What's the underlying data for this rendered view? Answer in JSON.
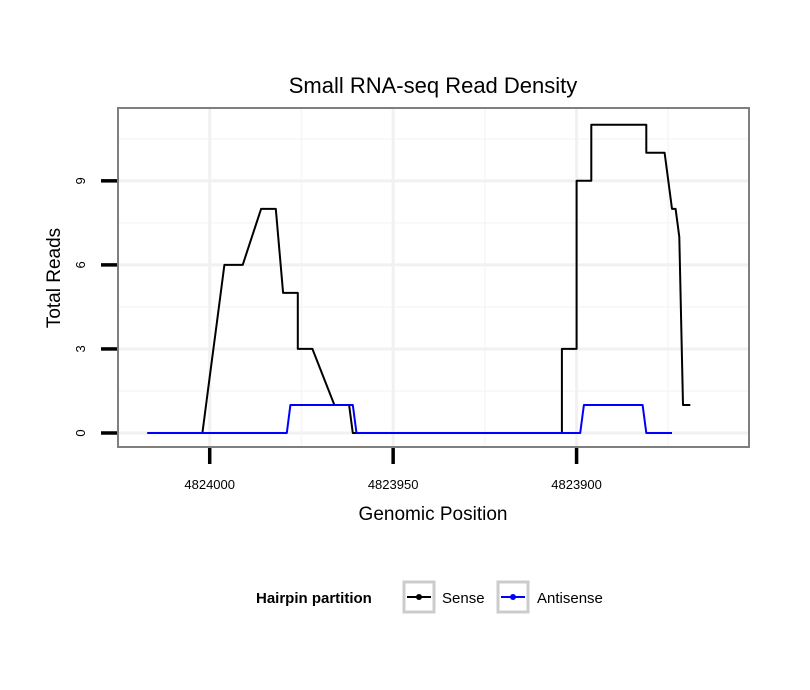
{
  "chart_data": {
    "type": "line",
    "title": "Small RNA-seq Read Density",
    "xlabel": "Genomic Position",
    "ylabel": "Total Reads",
    "xlim": [
      4824025,
      4823853
    ],
    "ylim": [
      -0.5,
      11.6
    ],
    "x_reversed": true,
    "x_ticks": [
      4824000,
      4823950,
      4823900
    ],
    "x_tick_labels": [
      "4824000",
      "4823950",
      "4823900"
    ],
    "y_ticks": [
      0,
      3,
      6,
      9
    ],
    "y_tick_labels": [
      "0",
      "3",
      "6",
      "9"
    ],
    "grid": true,
    "legend": {
      "title": "Hairpin partition",
      "position": "bottom",
      "entries": [
        {
          "label": "Sense",
          "color": "#000000"
        },
        {
          "label": "Antisense",
          "color": "#0000ff"
        }
      ]
    },
    "series": [
      {
        "name": "Sense",
        "color": "#000000",
        "x": [
          4824017,
          4824002,
          4824000,
          4823998,
          4823998,
          4823996,
          4823991,
          4823986,
          4823986,
          4823982,
          4823982,
          4823980,
          4823976,
          4823976,
          4823972,
          4823966,
          4823962,
          4823962,
          4823961,
          4823950,
          4823905,
          4823904,
          4823904,
          4823900,
          4823900,
          4823896,
          4823896,
          4823892,
          4823892,
          4823881,
          4823881,
          4823876,
          4823876,
          4823874,
          4823873,
          4823873,
          4823872,
          4823871,
          4823871,
          4823869,
          4823869
        ],
        "y": [
          0,
          0,
          2,
          4,
          4,
          6,
          6,
          8,
          8,
          8,
          8,
          5,
          5,
          3,
          3,
          1,
          1,
          1,
          0,
          0,
          0,
          0,
          3,
          3,
          9,
          9,
          11,
          11,
          11,
          11,
          10,
          10,
          10,
          8,
          8,
          8,
          7,
          1,
          1,
          1,
          1
        ]
      },
      {
        "name": "Antisense",
        "color": "#0000ff",
        "x": [
          4824017,
          4823997,
          4823979,
          4823978,
          4823962,
          4823961,
          4823960,
          4823950,
          4823905,
          4823900,
          4823899,
          4823898,
          4823882,
          4823881,
          4823880,
          4823874
        ],
        "y": [
          0,
          0,
          0,
          1,
          1,
          1,
          0,
          0,
          0,
          0,
          0,
          1,
          1,
          0,
          0,
          0
        ]
      }
    ]
  }
}
